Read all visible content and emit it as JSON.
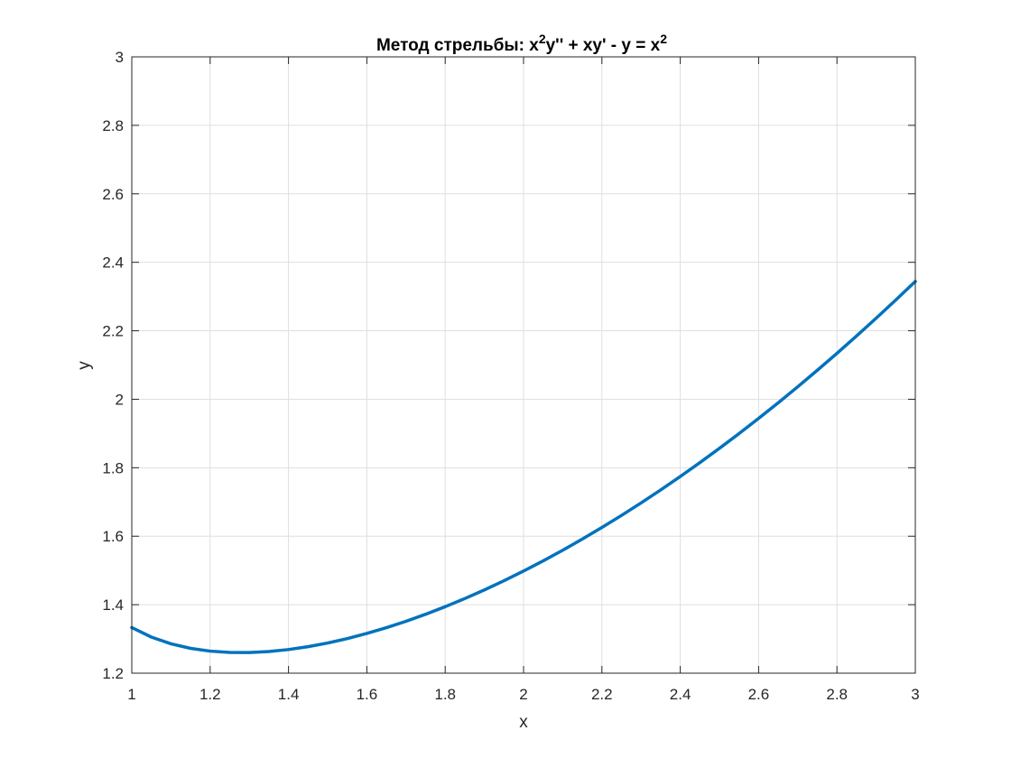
{
  "chart_data": {
    "type": "line",
    "title": {
      "prefix": "Метод стрельбы: x",
      "sup1": "2",
      "middle": "y'' + xy' - y = x",
      "sup2": "2"
    },
    "xlabel": "x",
    "ylabel": "y",
    "xlim": [
      1,
      3
    ],
    "ylim": [
      1.2,
      3
    ],
    "xticks": [
      1,
      1.2,
      1.4,
      1.6,
      1.8,
      2,
      2.2,
      2.4,
      2.6,
      2.8,
      3
    ],
    "xtick_labels": [
      "1",
      "1.2",
      "1.4",
      "1.6",
      "1.8",
      "2",
      "2.2",
      "2.4",
      "2.6",
      "2.8",
      "3"
    ],
    "yticks": [
      1.2,
      1.4,
      1.6,
      1.8,
      2,
      2.2,
      2.4,
      2.6,
      2.8,
      3
    ],
    "ytick_labels": [
      "1.2",
      "1.4",
      "1.6",
      "1.8",
      "2",
      "2.2",
      "2.4",
      "2.6",
      "2.8",
      "3"
    ],
    "grid": true,
    "series": [
      {
        "name": "y(x)",
        "color": "#0072BD",
        "x": [
          1.0,
          1.05,
          1.1,
          1.15,
          1.2,
          1.25,
          1.3,
          1.35,
          1.4,
          1.45,
          1.5,
          1.55,
          1.6,
          1.65,
          1.7,
          1.75,
          1.8,
          1.85,
          1.9,
          1.95,
          2.0,
          2.05,
          2.1,
          2.15,
          2.2,
          2.25,
          2.3,
          2.35,
          2.4,
          2.45,
          2.5,
          2.55,
          2.6,
          2.65,
          2.7,
          2.75,
          2.8,
          2.85,
          2.9,
          2.95,
          3.0
        ],
        "y": [
          1.3333,
          1.3054,
          1.2858,
          1.2725,
          1.2644,
          1.2606,
          1.2603,
          1.2632,
          1.269,
          1.2774,
          1.2881,
          1.301,
          1.316,
          1.3329,
          1.3516,
          1.3721,
          1.3942,
          1.4179,
          1.4432,
          1.47,
          1.4983,
          1.528,
          1.5591,
          1.5916,
          1.6255,
          1.6607,
          1.6973,
          1.7352,
          1.7744,
          1.8149,
          1.8567,
          1.8998,
          1.9441,
          1.9897,
          2.0366,
          2.0848,
          2.1342,
          2.1848,
          2.2367,
          2.2898,
          2.3441
        ]
      }
    ]
  }
}
